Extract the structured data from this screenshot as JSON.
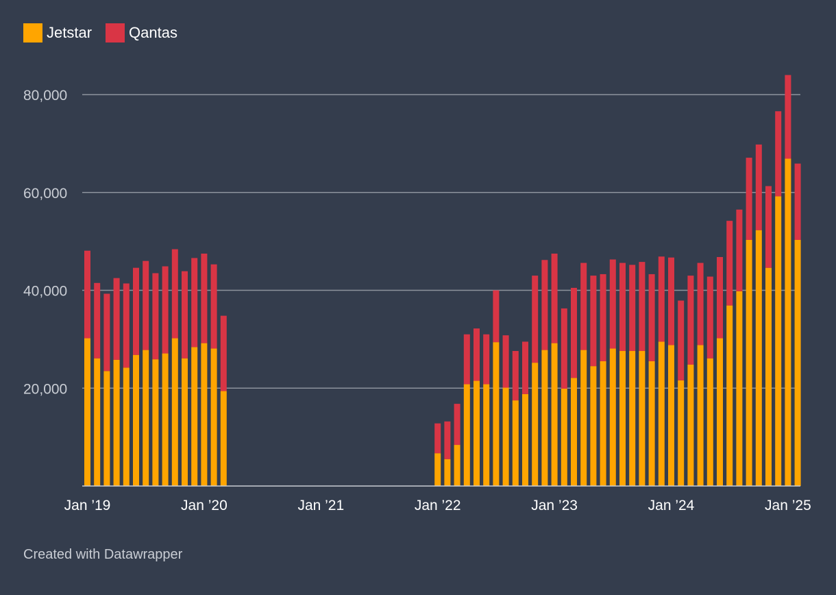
{
  "legend": [
    {
      "label": "Jetstar",
      "color": "#ffa500"
    },
    {
      "label": "Qantas",
      "color": "#d93545"
    }
  ],
  "footer": "Created with Datawrapper",
  "chart_data": {
    "type": "bar",
    "stacked": true,
    "title": "",
    "xlabel": "",
    "ylabel": "",
    "ylim": [
      0,
      85000
    ],
    "yticks": [
      20000,
      40000,
      60000,
      80000
    ],
    "ytick_labels": [
      "20,000",
      "40,000",
      "60,000",
      "80,000"
    ],
    "xticks": [
      "2019-01",
      "2020-01",
      "2021-01",
      "2022-01",
      "2023-01",
      "2024-01",
      "2025-01"
    ],
    "xtick_labels": [
      "Jan ’19",
      "Jan ’20",
      "Jan ’21",
      "Jan ’22",
      "Jan ’23",
      "Jan ’24",
      "Jan ’25"
    ],
    "x_range": [
      "2019-01",
      "2025-01"
    ],
    "grid": true,
    "legend_position": "top-left",
    "categories": [
      "2019-01",
      "2019-02",
      "2019-03",
      "2019-04",
      "2019-05",
      "2019-06",
      "2019-07",
      "2019-08",
      "2019-09",
      "2019-10",
      "2019-11",
      "2019-12",
      "2020-01",
      "2020-02",
      "2020-03",
      "2022-01",
      "2022-02",
      "2022-03",
      "2022-04",
      "2022-05",
      "2022-06",
      "2022-07",
      "2022-08",
      "2022-09",
      "2022-10",
      "2022-11",
      "2022-12",
      "2023-01",
      "2023-02",
      "2023-03",
      "2023-04",
      "2023-05",
      "2023-06",
      "2023-07",
      "2023-08",
      "2023-09",
      "2023-10",
      "2023-11",
      "2023-12",
      "2024-01",
      "2024-02",
      "2024-03",
      "2024-04",
      "2024-05",
      "2024-06",
      "2024-07",
      "2024-08",
      "2024-09",
      "2024-10",
      "2024-11",
      "2024-12",
      "2025-01",
      "2025-02"
    ],
    "series": [
      {
        "name": "Jetstar",
        "color": "#ffa500",
        "values": [
          30200,
          26100,
          23500,
          25800,
          24200,
          26800,
          27800,
          25900,
          27100,
          30200,
          26100,
          28400,
          29200,
          28100,
          19400,
          6700,
          5500,
          8400,
          20800,
          21500,
          20800,
          29400,
          20100,
          17500,
          18800,
          25200,
          27800,
          29200,
          19900,
          22100,
          27800,
          24500,
          25500,
          28100,
          27600,
          27600,
          27600,
          25500,
          29500,
          28800,
          21600,
          24800,
          28800,
          26100,
          30200,
          36900,
          39800,
          50300,
          52300,
          44600,
          59200,
          66900,
          50300
        ]
      },
      {
        "name": "Qantas",
        "color": "#d93545",
        "values": [
          17900,
          15400,
          15800,
          16700,
          17200,
          17800,
          18200,
          17600,
          17800,
          18200,
          17800,
          18200,
          18300,
          17200,
          15400,
          6100,
          7700,
          8400,
          10200,
          10700,
          10200,
          10600,
          10700,
          10100,
          10700,
          17800,
          18400,
          18300,
          16400,
          18400,
          17800,
          18500,
          17800,
          18200,
          18000,
          17600,
          18200,
          17800,
          17400,
          17900,
          16300,
          18200,
          16800,
          16700,
          16600,
          17300,
          16700,
          16800,
          17500,
          16700,
          17400,
          17100,
          15600
        ]
      }
    ]
  }
}
